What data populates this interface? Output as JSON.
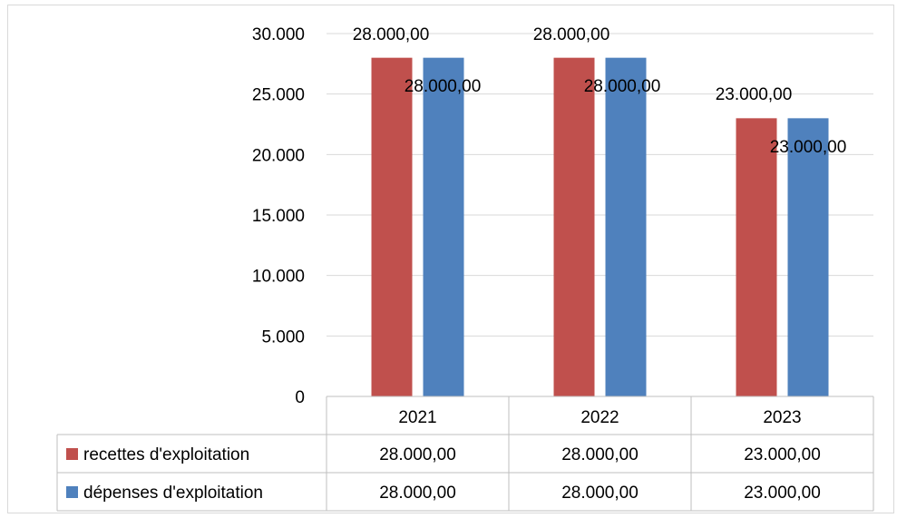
{
  "chart_data": {
    "type": "bar",
    "categories": [
      "2021",
      "2022",
      "2023"
    ],
    "series": [
      {
        "name": "recettes d'exploitation",
        "values": [
          28000,
          28000,
          23000
        ],
        "labels": [
          "28.000,00",
          "28.000,00",
          "23.000,00"
        ],
        "color": "#c0504d"
      },
      {
        "name": "dépenses d'exploitation",
        "values": [
          28000,
          28000,
          23000
        ],
        "labels": [
          "28.000,00",
          "28.000,00",
          "23.000,00"
        ],
        "color": "#4f81bd"
      }
    ],
    "ylim": [
      0,
      30000
    ],
    "yticks": [
      {
        "value": 0,
        "label": "0"
      },
      {
        "value": 5000,
        "label": "5.000"
      },
      {
        "value": 10000,
        "label": "10.000"
      },
      {
        "value": 15000,
        "label": "15.000"
      },
      {
        "value": 20000,
        "label": "20.000"
      },
      {
        "value": 25000,
        "label": "25.000"
      },
      {
        "value": 30000,
        "label": "30.000"
      }
    ],
    "grid": true,
    "legend": "data-table",
    "data_table": true,
    "title": "",
    "xlabel": "",
    "ylabel": ""
  }
}
